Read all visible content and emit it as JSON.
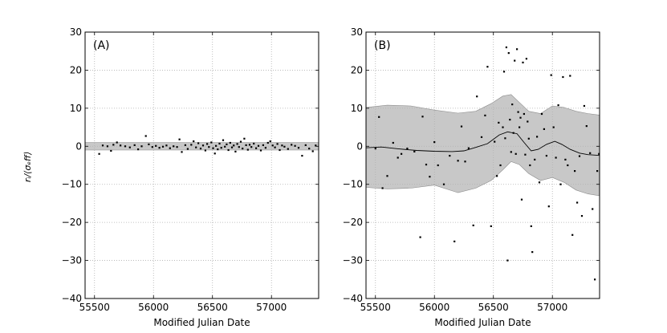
{
  "chart_data": [
    {
      "type": "scatter",
      "panel_label": "(A)",
      "xlabel": "Modified Julian Date",
      "ylabel": "r_i/⟨σ_eff⟩",
      "ylabel_display": "rᵢ/⟨σₑff⟩",
      "xlim": [
        55420,
        57400
      ],
      "ylim": [
        -40,
        30
      ],
      "xticks": [
        55500,
        56000,
        56500,
        57000
      ],
      "yticks": [
        -40,
        -30,
        -20,
        -10,
        0,
        10,
        20,
        30
      ],
      "xtick_labels": [
        "55500",
        "56000",
        "56500",
        "57000"
      ],
      "ytick_labels": [
        "−40",
        "−30",
        "−20",
        "−10",
        "0",
        "10",
        "20",
        "30"
      ],
      "grid": true,
      "band": {
        "x": [
          55420,
          57400
        ],
        "y_lower": [
          -1,
          -1
        ],
        "y_upper": [
          1,
          1
        ]
      },
      "series": [
        {
          "values": [
            [
              55540,
              -2.0
            ],
            [
              55570,
              0.2
            ],
            [
              55610,
              0.0
            ],
            [
              55640,
              -1.2
            ],
            [
              55660,
              0.4
            ],
            [
              55690,
              1.0
            ],
            [
              55720,
              0.2
            ],
            [
              55760,
              0.0
            ],
            [
              55800,
              -0.3
            ],
            [
              55840,
              0.3
            ],
            [
              55870,
              -0.8
            ],
            [
              55900,
              0.0
            ],
            [
              55935,
              2.7
            ],
            [
              55960,
              0.5
            ],
            [
              55990,
              -0.2
            ],
            [
              56020,
              0.1
            ],
            [
              56050,
              -0.4
            ],
            [
              56080,
              -0.1
            ],
            [
              56110,
              0.2
            ],
            [
              56140,
              -0.5
            ],
            [
              56170,
              0.0
            ],
            [
              56200,
              -0.2
            ],
            [
              56220,
              1.8
            ],
            [
              56240,
              -1.5
            ],
            [
              56270,
              0.3
            ],
            [
              56290,
              -0.7
            ],
            [
              56320,
              0.4
            ],
            [
              56340,
              1.3
            ],
            [
              56360,
              -0.3
            ],
            [
              56380,
              0.8
            ],
            [
              56400,
              -0.6
            ],
            [
              56420,
              0.2
            ],
            [
              56440,
              -1.1
            ],
            [
              56455,
              0.6
            ],
            [
              56470,
              -0.2
            ],
            [
              56490,
              1.0
            ],
            [
              56505,
              -0.5
            ],
            [
              56520,
              -1.9
            ],
            [
              56530,
              0.1
            ],
            [
              56545,
              -0.8
            ],
            [
              56560,
              0.7
            ],
            [
              56575,
              -0.4
            ],
            [
              56590,
              1.6
            ],
            [
              56605,
              -0.1
            ],
            [
              56620,
              0.5
            ],
            [
              56635,
              -1.0
            ],
            [
              56650,
              0.9
            ],
            [
              56665,
              -0.3
            ],
            [
              56680,
              0.2
            ],
            [
              56695,
              -1.4
            ],
            [
              56710,
              0.6
            ],
            [
              56725,
              -0.2
            ],
            [
              56740,
              1.2
            ],
            [
              56755,
              -0.6
            ],
            [
              56770,
              2.0
            ],
            [
              56785,
              0.3
            ],
            [
              56800,
              -0.9
            ],
            [
              56815,
              0.4
            ],
            [
              56830,
              -0.2
            ],
            [
              56850,
              0.7
            ],
            [
              56870,
              -0.5
            ],
            [
              56890,
              0.1
            ],
            [
              56910,
              -1.1
            ],
            [
              56930,
              0.3
            ],
            [
              56950,
              -0.4
            ],
            [
              56970,
              0.9
            ],
            [
              56990,
              1.3
            ],
            [
              57010,
              0.2
            ],
            [
              57030,
              -0.3
            ],
            [
              57050,
              0.6
            ],
            [
              57070,
              -1.0
            ],
            [
              57090,
              0.2
            ],
            [
              57110,
              -0.1
            ],
            [
              57140,
              -0.7
            ],
            [
              57170,
              0.4
            ],
            [
              57200,
              0.1
            ],
            [
              57230,
              -0.4
            ],
            [
              57260,
              -2.5
            ],
            [
              57290,
              0.3
            ],
            [
              57320,
              -0.6
            ],
            [
              57350,
              -1.3
            ],
            [
              57375,
              0.2
            ]
          ]
        }
      ]
    },
    {
      "type": "scatter",
      "panel_label": "(B)",
      "xlabel": "Modified Julian Date",
      "xlim": [
        55420,
        57400
      ],
      "ylim": [
        -40,
        30
      ],
      "xticks": [
        55500,
        56000,
        56500,
        57000
      ],
      "yticks": [
        -40,
        -30,
        -20,
        -10,
        0,
        10,
        20,
        30
      ],
      "xtick_labels": [
        "55500",
        "56000",
        "56500",
        "57000"
      ],
      "ytick_labels": [
        "−40",
        "−30",
        "−20",
        "−10",
        "0",
        "10",
        "20",
        "30"
      ],
      "grid": true,
      "band": {
        "x": [
          55420,
          55600,
          55800,
          56000,
          56200,
          56350,
          56480,
          56580,
          56650,
          56720,
          56800,
          56900,
          57000,
          57100,
          57200,
          57300,
          57400
        ],
        "y_lower": [
          -10.8,
          -11.2,
          -11.0,
          -10.2,
          -12.2,
          -11.0,
          -9.0,
          -6.2,
          -4.0,
          -4.8,
          -7.2,
          -9.0,
          -8.2,
          -9.5,
          -11.5,
          -12.5,
          -13.0
        ],
        "y_upper": [
          10.2,
          10.8,
          10.6,
          9.5,
          8.7,
          9.2,
          11.2,
          13.2,
          13.6,
          11.5,
          9.2,
          8.6,
          10.6,
          10.2,
          9.2,
          8.6,
          8.2
        ]
      },
      "line": {
        "x": [
          55420,
          55550,
          55700,
          55850,
          56000,
          56150,
          56250,
          56350,
          56450,
          56550,
          56620,
          56700,
          56760,
          56820,
          56880,
          56950,
          57020,
          57080,
          57150,
          57230,
          57300,
          57400
        ],
        "y": [
          -0.4,
          -0.2,
          -0.7,
          -1.1,
          -1.3,
          -1.4,
          -1.2,
          -0.3,
          0.7,
          3.0,
          3.8,
          3.3,
          1.0,
          -1.2,
          -0.8,
          0.5,
          1.3,
          0.5,
          -0.8,
          -1.8,
          -2.2,
          -2.4
        ]
      },
      "series": [
        {
          "values": [
            [
              55500,
              -0.6
            ],
            [
              55530,
              7.7
            ],
            [
              55560,
              -11.0
            ],
            [
              55600,
              -7.8
            ],
            [
              55650,
              0.9
            ],
            [
              55690,
              -3.0
            ],
            [
              55720,
              -2.0
            ],
            [
              55770,
              -0.6
            ],
            [
              55830,
              -1.4
            ],
            [
              55880,
              -23.9
            ],
            [
              55900,
              7.8
            ],
            [
              55930,
              -4.8
            ],
            [
              55960,
              -8.0
            ],
            [
              56000,
              1.1
            ],
            [
              56030,
              -5.0
            ],
            [
              56080,
              -10.0
            ],
            [
              56130,
              -2.5
            ],
            [
              56170,
              -25.0
            ],
            [
              56200,
              -3.8
            ],
            [
              56230,
              5.2
            ],
            [
              56260,
              -4.0
            ],
            [
              56290,
              -0.5
            ],
            [
              56330,
              -20.8
            ],
            [
              56360,
              13.1
            ],
            [
              56400,
              2.4
            ],
            [
              56430,
              8.1
            ],
            [
              56450,
              20.9
            ],
            [
              56480,
              -21.0
            ],
            [
              56510,
              1.2
            ],
            [
              56530,
              -7.8
            ],
            [
              56545,
              6.2
            ],
            [
              56560,
              -5.0
            ],
            [
              56580,
              5.0
            ],
            [
              56590,
              19.6
            ],
            [
              56600,
              2.1
            ],
            [
              56610,
              26.0
            ],
            [
              56620,
              -30.0
            ],
            [
              56630,
              24.5
            ],
            [
              56640,
              7.0
            ],
            [
              56650,
              -1.5
            ],
            [
              56660,
              11.0
            ],
            [
              56670,
              3.5
            ],
            [
              56680,
              22.5
            ],
            [
              56690,
              -2.0
            ],
            [
              56700,
              25.5
            ],
            [
              56710,
              9.0
            ],
            [
              56720,
              5.0
            ],
            [
              56730,
              7.5
            ],
            [
              56740,
              -14.0
            ],
            [
              56750,
              22.0
            ],
            [
              56760,
              8.5
            ],
            [
              56770,
              -2.2
            ],
            [
              56780,
              23.0
            ],
            [
              56790,
              6.5
            ],
            [
              56800,
              2.0
            ],
            [
              56810,
              -5.0
            ],
            [
              56820,
              -21.0
            ],
            [
              56830,
              -27.8
            ],
            [
              56850,
              -3.5
            ],
            [
              56870,
              2.5
            ],
            [
              56890,
              -9.5
            ],
            [
              56910,
              8.5
            ],
            [
              56930,
              4.5
            ],
            [
              56950,
              -2.5
            ],
            [
              56970,
              -15.8
            ],
            [
              56990,
              18.7
            ],
            [
              57010,
              5.0
            ],
            [
              57030,
              -3.0
            ],
            [
              57050,
              10.8
            ],
            [
              57070,
              -10.0
            ],
            [
              57090,
              18.2
            ],
            [
              57110,
              -3.5
            ],
            [
              57130,
              -5.0
            ],
            [
              57150,
              18.5
            ],
            [
              57170,
              -23.3
            ],
            [
              57190,
              -6.5
            ],
            [
              57210,
              -14.8
            ],
            [
              57230,
              -2.6
            ],
            [
              57250,
              -18.3
            ],
            [
              57270,
              10.6
            ],
            [
              57290,
              5.3
            ],
            [
              57320,
              -1.8
            ],
            [
              57340,
              -16.5
            ],
            [
              57360,
              -35.0
            ],
            [
              57380,
              -6.5
            ],
            [
              57395,
              -2.0
            ]
          ]
        }
      ]
    }
  ]
}
